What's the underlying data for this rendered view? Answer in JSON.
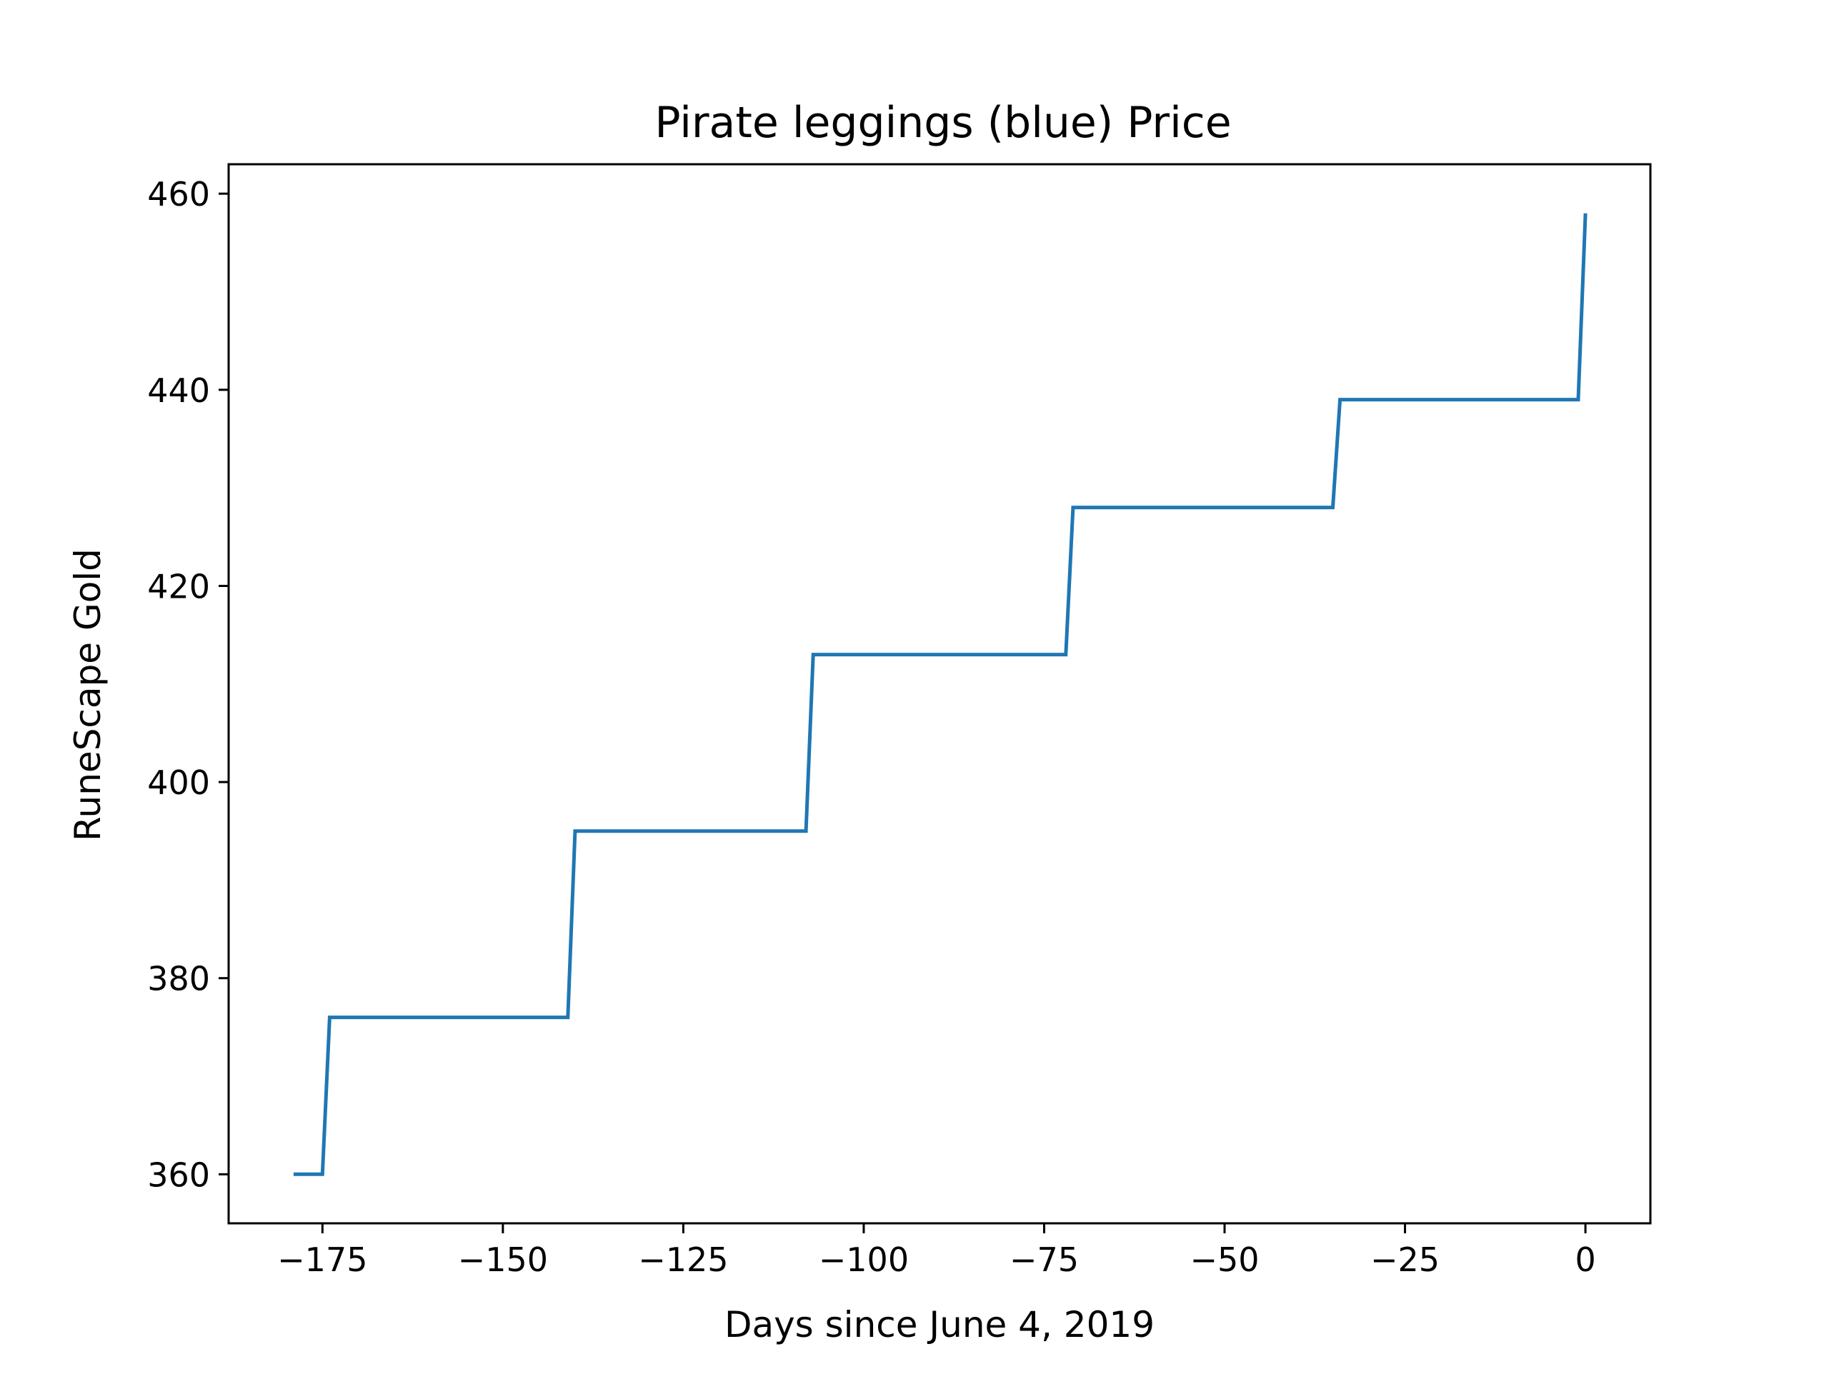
{
  "chart_data": {
    "type": "line",
    "title": "Pirate leggings (blue) Price",
    "xlabel": "Days since June 4, 2019",
    "ylabel": "RuneScape Gold",
    "xlim": [
      -188,
      9
    ],
    "ylim": [
      355,
      463
    ],
    "x_ticks": [
      -175,
      -150,
      -125,
      -100,
      -75,
      -50,
      -25,
      0
    ],
    "x_tick_labels": [
      "−175",
      "−150",
      "−125",
      "−100",
      "−75",
      "−50",
      "−25",
      "0"
    ],
    "y_ticks": [
      360,
      380,
      400,
      420,
      440,
      460
    ],
    "y_tick_labels": [
      "360",
      "380",
      "400",
      "420",
      "440",
      "460"
    ],
    "grid": false,
    "legend": false,
    "series": [
      {
        "color": "#1f77b4",
        "x": [
          -179,
          -175,
          -174,
          -141,
          -140,
          -108,
          -107,
          -72,
          -71,
          -35,
          -34,
          -1,
          0
        ],
        "y": [
          360,
          360,
          376,
          376,
          395,
          395,
          413,
          413,
          428,
          428,
          439,
          439,
          458
        ]
      }
    ]
  }
}
